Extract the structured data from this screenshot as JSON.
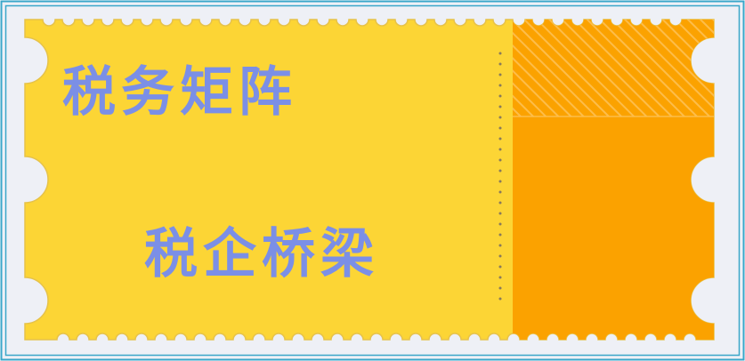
{
  "ticket": {
    "line1": "税务矩阵",
    "line2": "税企桥梁"
  },
  "colors": {
    "outer_border": "#3aa6c9",
    "background": "#eef0f6",
    "ticket_body": "#fcd535",
    "ticket_stub": "#fba200",
    "ticket_stub_hatch": "#fdbd4a",
    "perforation_dots": "#8a7a5a",
    "text": "#7b8fe6"
  }
}
